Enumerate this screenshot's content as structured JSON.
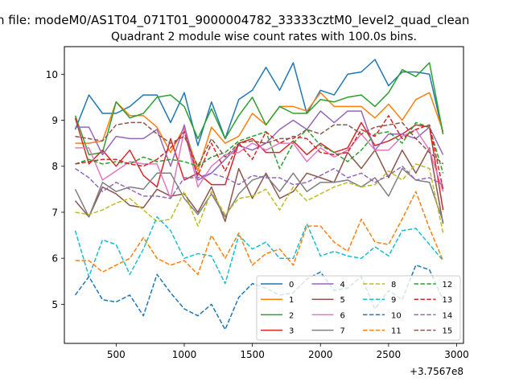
{
  "chart_data": {
    "type": "line",
    "suptitle": "n file: modeM0/AS1T04_071T01_9000004782_33333cztM0_level2_quad_clean",
    "title": "Quadrant 2 module wise count rates with 100.0s bins.",
    "xlabel": "",
    "ylabel": "",
    "x_offset_label": "+3.7567e8",
    "xlim": [
      120,
      3050
    ],
    "ylim": [
      4.15,
      10.6
    ],
    "x_ticks": [
      500,
      1000,
      1500,
      2000,
      2500,
      3000
    ],
    "y_ticks": [
      5,
      6,
      7,
      8,
      9,
      10
    ],
    "x_tick_labels": [
      "500",
      "1000",
      "1500",
      "2000",
      "2500",
      "3000"
    ],
    "y_tick_labels": [
      "5",
      "6",
      "7",
      "8",
      "9",
      "10"
    ],
    "legend_position": "lower-right",
    "x": [
      200,
      300,
      400,
      500,
      600,
      700,
      800,
      900,
      1000,
      1100,
      1200,
      1300,
      1400,
      1500,
      1600,
      1700,
      1800,
      1900,
      2000,
      2100,
      2200,
      2300,
      2400,
      2500,
      2600,
      2700,
      2800,
      2900
    ],
    "series": [
      {
        "name": "0",
        "color": "#1f77b4",
        "style": "solid",
        "values": [
          8.8,
          9.55,
          9.15,
          9.15,
          9.3,
          9.55,
          9.55,
          8.95,
          9.6,
          8.45,
          9.4,
          8.6,
          9.45,
          9.65,
          10.15,
          9.65,
          10.25,
          9.15,
          9.65,
          9.55,
          10.0,
          10.05,
          10.32,
          9.75,
          10.05,
          10.05,
          10.0,
          8.7
        ]
      },
      {
        "name": "1",
        "color": "#ff7f0e",
        "style": "solid",
        "values": [
          8.5,
          8.5,
          8.55,
          9.4,
          9.1,
          9.1,
          8.85,
          8.3,
          8.85,
          7.9,
          8.85,
          8.5,
          8.65,
          9.15,
          8.9,
          9.3,
          9.3,
          9.2,
          9.6,
          9.3,
          9.3,
          9.3,
          9.05,
          9.35,
          9.0,
          9.45,
          9.6,
          8.75
        ]
      },
      {
        "name": "2",
        "color": "#2ca02c",
        "style": "solid",
        "values": [
          9.1,
          8.25,
          8.3,
          9.4,
          9.05,
          9.15,
          9.5,
          9.55,
          9.3,
          8.6,
          9.25,
          8.6,
          9.1,
          9.5,
          8.9,
          9.3,
          9.15,
          9.15,
          9.45,
          9.4,
          9.5,
          9.55,
          9.3,
          9.6,
          10.1,
          9.95,
          10.25,
          8.7
        ]
      },
      {
        "name": "3",
        "color": "#d62728",
        "style": "solid",
        "values": [
          9.05,
          8.05,
          8.35,
          8.0,
          8.35,
          7.8,
          7.55,
          8.6,
          7.7,
          7.85,
          7.6,
          7.6,
          8.5,
          8.6,
          8.3,
          8.3,
          8.55,
          8.25,
          8.5,
          8.3,
          8.4,
          8.95,
          8.45,
          8.55,
          8.7,
          8.9,
          8.85,
          7.05
        ]
      },
      {
        "name": "4",
        "color": "#9467bd",
        "style": "solid",
        "values": [
          8.85,
          8.85,
          8.25,
          8.65,
          8.6,
          8.6,
          8.8,
          8.0,
          8.9,
          7.7,
          7.85,
          8.15,
          8.45,
          8.35,
          8.5,
          8.8,
          9.0,
          8.8,
          9.2,
          8.95,
          9.2,
          9.2,
          8.35,
          8.7,
          8.7,
          8.6,
          8.85,
          8.25
        ]
      },
      {
        "name": "5",
        "color": "#8c564b",
        "style": "solid",
        "values": [
          7.25,
          6.9,
          7.55,
          7.4,
          7.15,
          7.1,
          7.5,
          7.35,
          7.4,
          7.0,
          7.55,
          6.8,
          7.95,
          7.3,
          7.85,
          7.3,
          7.45,
          7.85,
          7.75,
          7.65,
          8.3,
          7.95,
          8.35,
          7.75,
          8.35,
          7.85,
          8.4,
          6.75
        ]
      },
      {
        "name": "6",
        "color": "#e377c2",
        "style": "solid",
        "values": [
          8.4,
          8.4,
          7.7,
          7.9,
          8.1,
          8.05,
          8.05,
          7.3,
          8.8,
          7.55,
          8.0,
          8.25,
          8.3,
          8.5,
          8.35,
          8.5,
          8.5,
          8.1,
          8.4,
          8.2,
          8.35,
          8.7,
          8.35,
          8.35,
          8.65,
          8.8,
          8.35,
          7.45
        ]
      },
      {
        "name": "7",
        "color": "#7f7f7f",
        "style": "solid",
        "values": [
          7.5,
          6.9,
          7.65,
          7.45,
          7.55,
          7.5,
          7.85,
          7.85,
          7.3,
          6.95,
          7.4,
          6.9,
          7.4,
          7.7,
          7.8,
          7.45,
          7.85,
          7.45,
          7.65,
          7.65,
          7.7,
          7.55,
          7.75,
          7.35,
          7.95,
          7.7,
          7.65,
          6.8
        ]
      },
      {
        "name": "8",
        "color": "#bcbd22",
        "style": "dashed",
        "values": [
          7.0,
          6.95,
          7.05,
          7.2,
          7.3,
          7.05,
          6.8,
          6.85,
          7.45,
          6.7,
          7.45,
          6.95,
          7.3,
          7.35,
          7.5,
          7.05,
          7.55,
          7.25,
          7.4,
          7.55,
          7.65,
          7.55,
          7.6,
          7.9,
          7.7,
          8.05,
          7.95,
          6.55
        ]
      },
      {
        "name": "9",
        "color": "#17becf",
        "style": "dashed",
        "values": [
          6.6,
          5.6,
          6.4,
          6.3,
          5.65,
          6.2,
          6.9,
          6.6,
          6.0,
          6.1,
          6.05,
          5.45,
          6.5,
          6.2,
          6.35,
          6.0,
          6.0,
          6.75,
          6.05,
          6.15,
          6.05,
          6.0,
          6.25,
          6.05,
          6.6,
          6.65,
          6.3,
          5.95
        ]
      },
      {
        "name": "10",
        "color": "#1f77b4",
        "style": "dashed",
        "values": [
          5.2,
          5.6,
          5.1,
          5.05,
          5.2,
          4.75,
          5.65,
          5.25,
          4.9,
          4.75,
          5.0,
          4.45,
          5.15,
          5.45,
          5.35,
          5.2,
          5.25,
          5.55,
          5.7,
          5.3,
          5.35,
          5.6,
          4.9,
          5.3,
          5.1,
          5.85,
          5.75,
          5.1
        ]
      },
      {
        "name": "11",
        "color": "#ff7f0e",
        "style": "dashed",
        "values": [
          5.95,
          5.95,
          5.7,
          5.85,
          6.0,
          6.45,
          6.0,
          5.85,
          5.95,
          5.65,
          6.5,
          6.0,
          6.55,
          5.85,
          6.1,
          6.2,
          5.85,
          6.7,
          6.7,
          6.35,
          6.15,
          6.85,
          6.35,
          6.3,
          6.85,
          7.45,
          6.65,
          5.95
        ]
      },
      {
        "name": "12",
        "color": "#2ca02c",
        "style": "dashed",
        "values": [
          8.05,
          8.15,
          8.05,
          8.1,
          8.05,
          8.2,
          8.1,
          8.15,
          8.1,
          8.0,
          8.2,
          8.3,
          8.55,
          8.65,
          8.75,
          7.95,
          8.5,
          8.8,
          8.45,
          8.3,
          8.1,
          8.35,
          8.7,
          8.75,
          8.5,
          8.95,
          8.85,
          7.85
        ]
      },
      {
        "name": "13",
        "color": "#d62728",
        "style": "dashed",
        "values": [
          8.05,
          8.1,
          8.15,
          8.15,
          8.05,
          8.0,
          8.15,
          8.4,
          8.75,
          7.8,
          8.5,
          7.9,
          8.5,
          8.15,
          8.75,
          8.5,
          8.65,
          8.6,
          8.3,
          8.25,
          8.3,
          8.8,
          8.65,
          9.1,
          8.6,
          8.8,
          8.9,
          7.5
        ]
      },
      {
        "name": "14",
        "color": "#9467bd",
        "style": "dashed",
        "values": [
          7.95,
          7.75,
          7.45,
          7.65,
          7.5,
          7.35,
          7.35,
          7.3,
          7.75,
          7.75,
          7.85,
          7.75,
          7.6,
          7.8,
          7.75,
          7.75,
          7.6,
          7.65,
          7.8,
          7.95,
          7.75,
          7.85,
          7.65,
          7.8,
          8.0,
          7.7,
          7.75,
          7.6
        ]
      },
      {
        "name": "15",
        "color": "#8c564b",
        "style": "dashed",
        "values": [
          8.65,
          8.6,
          8.55,
          8.9,
          8.95,
          8.95,
          8.7,
          8.5,
          8.65,
          8.0,
          8.6,
          8.2,
          8.5,
          8.55,
          8.5,
          8.6,
          8.6,
          8.8,
          8.7,
          8.9,
          8.9,
          8.7,
          8.85,
          8.9,
          8.95,
          8.6,
          8.3,
          8.05
        ]
      }
    ]
  }
}
